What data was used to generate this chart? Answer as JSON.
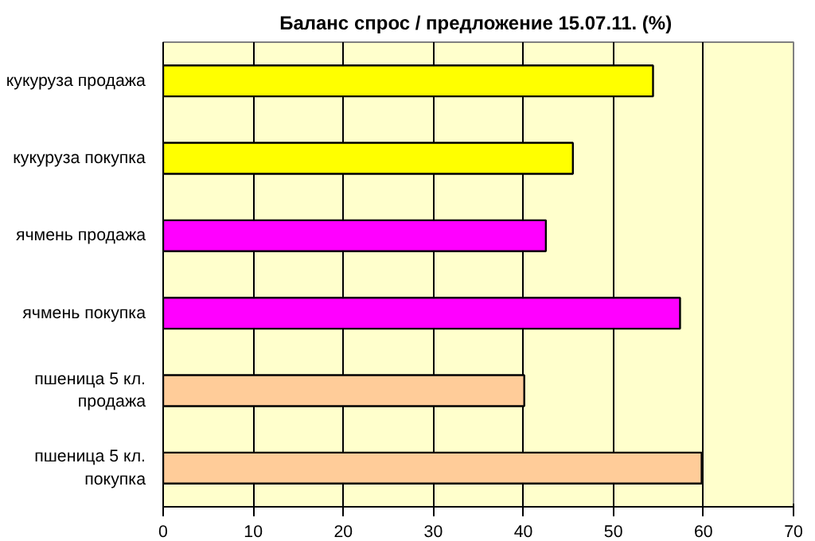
{
  "chart_data": {
    "type": "bar",
    "orientation": "horizontal",
    "title": "Баланс спрос / предложение 15.07.11.  (%)",
    "categories": [
      "кукуруза продажа",
      "кукуруза покупка",
      "ячмень продажа",
      "ячмень покупка",
      "пшеница 5 кл.\nпродажа",
      "пшеница 5 кл.\nпокупка"
    ],
    "values": [
      54.4,
      45.5,
      42.5,
      57.4,
      40.1,
      59.8
    ],
    "colors": [
      "#ffff00",
      "#ffff00",
      "#ff00ff",
      "#ff00ff",
      "#ffcc99",
      "#ffcc99"
    ],
    "xlim": [
      0,
      70
    ],
    "xticks": [
      0,
      10,
      20,
      30,
      40,
      50,
      60,
      70
    ],
    "grid": "x"
  }
}
